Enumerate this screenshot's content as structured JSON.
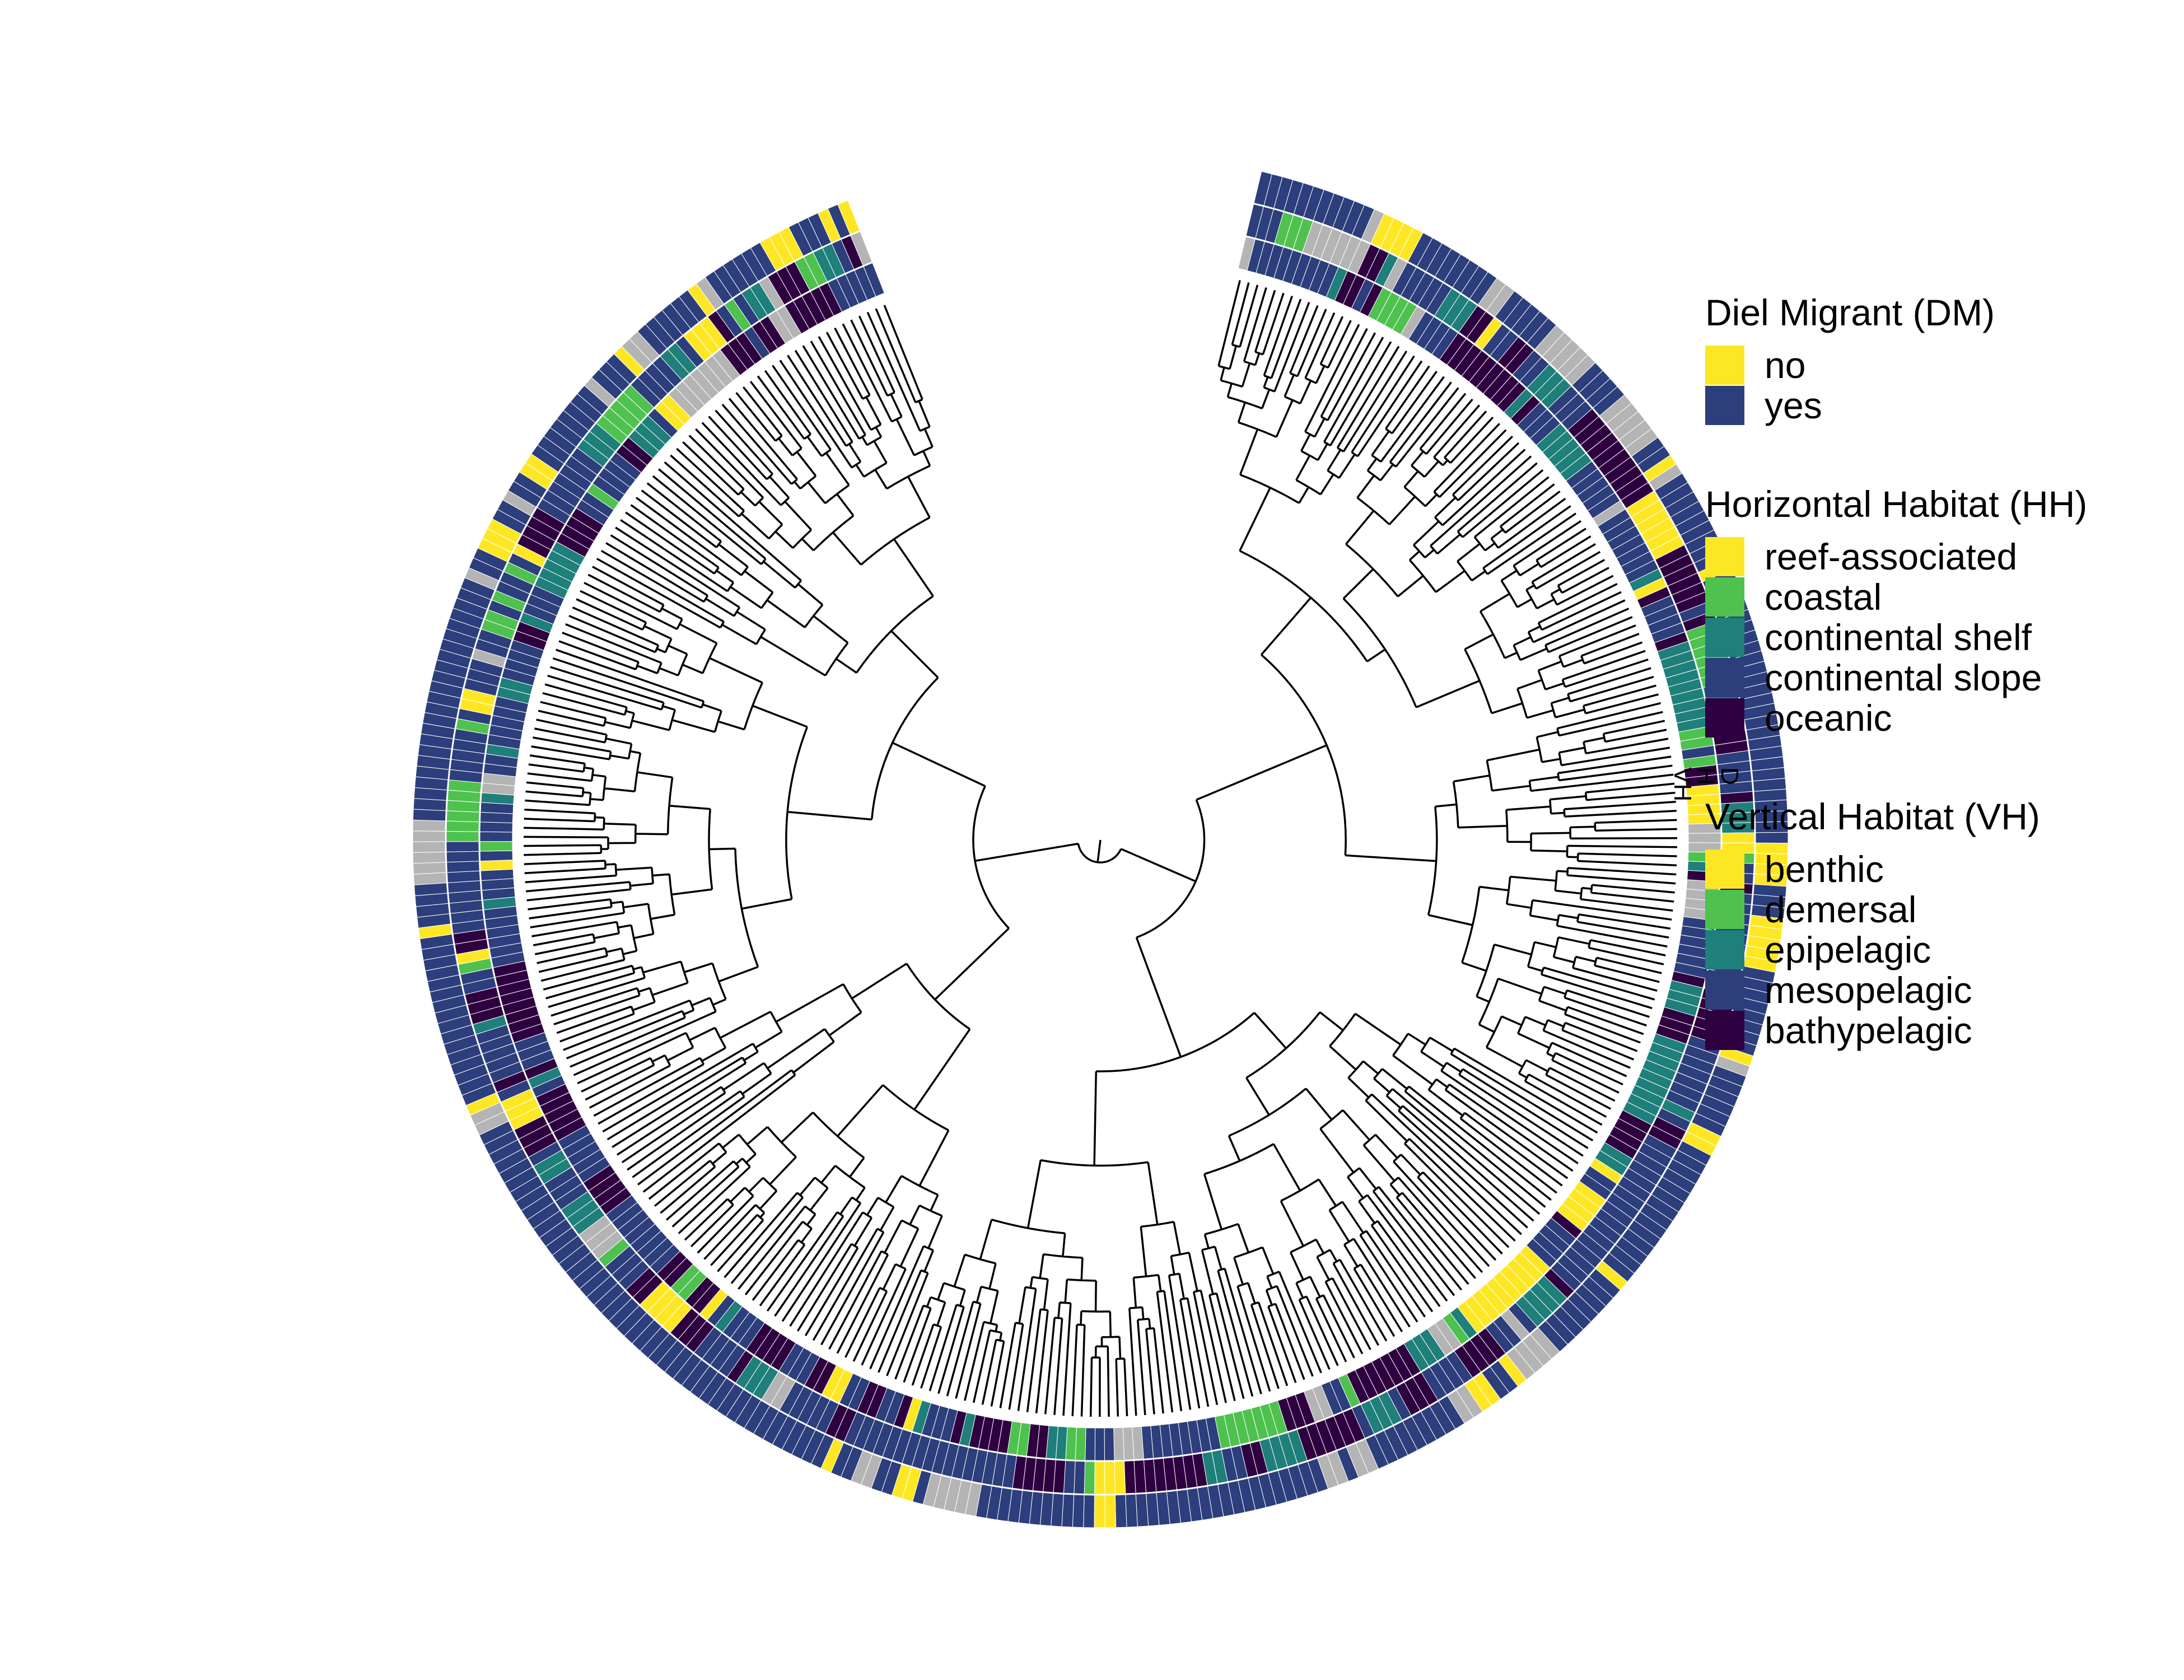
{
  "ring_labels": {
    "dm": "D",
    "hh": "H",
    "vh": "VH"
  },
  "colors": {
    "branch": "#000000",
    "missing": "#b4b4b4",
    "cell_border": "#ffffff"
  },
  "legends": [
    {
      "id": "dm",
      "title": "Diel Migrant (DM)",
      "items": [
        {
          "label": "no",
          "color": "#fde725"
        },
        {
          "label": "yes",
          "color": "#2c3e7b"
        }
      ]
    },
    {
      "id": "hh",
      "title": "Horizontal Habitat (HH)",
      "items": [
        {
          "label": "reef-associated",
          "color": "#fde725"
        },
        {
          "label": "coastal",
          "color": "#4fc14f"
        },
        {
          "label": "continental shelf",
          "color": "#1f7f7a"
        },
        {
          "label": "continental slope",
          "color": "#2c3e7b"
        },
        {
          "label": "oceanic",
          "color": "#2e0040"
        }
      ]
    },
    {
      "id": "vh",
      "title": "Vertical Habitat (VH)",
      "items": [
        {
          "label": "benthic",
          "color": "#fde725"
        },
        {
          "label": "demersal",
          "color": "#4fc14f"
        },
        {
          "label": "epipelagic",
          "color": "#1f7f7a"
        },
        {
          "label": "mesopelagic",
          "color": "#2c3e7b"
        },
        {
          "label": "bathypelagic",
          "color": "#2e0040"
        }
      ]
    }
  ]
}
